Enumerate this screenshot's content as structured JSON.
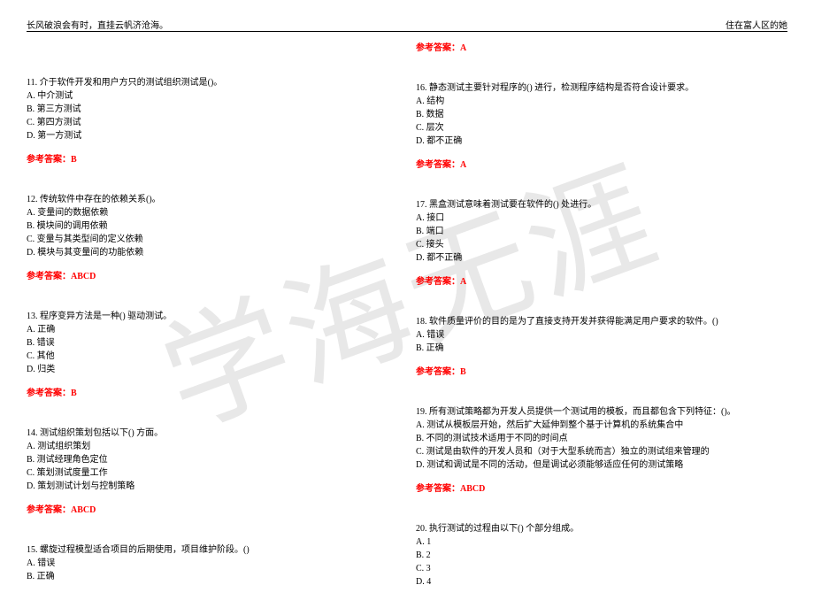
{
  "header": {
    "left": "长风破浪会有时，直挂云帆济沧海。",
    "right": "住在富人区的她"
  },
  "watermark": "学海无涯",
  "answer_prefix": "参考答案：",
  "left_column": [
    {
      "question": "11. 介于软件开发和用户方只的测试组织测试是()。",
      "options": [
        "A. 中介测试",
        "B. 第三方测试",
        "C. 第四方测试",
        "D. 第一方测试"
      ],
      "answer": "B"
    },
    {
      "question": "12. 传统软件中存在的依赖关系()。",
      "options": [
        "A. 变量间的数据依赖",
        "B. 模块间的调用依赖",
        "C. 变量与其类型间的定义依赖",
        "D. 模块与其变量间的功能依赖"
      ],
      "answer": "ABCD"
    },
    {
      "question": "13. 程序变异方法是一种() 驱动测试。",
      "options": [
        "A. 正确",
        "B. 错误",
        "C. 其他",
        "D. 归类"
      ],
      "answer": "B"
    },
    {
      "question": "14. 测试组织策划包括以下() 方面。",
      "options": [
        "A. 测试组织策划",
        "B. 测试经理角色定位",
        "C. 策划测试度量工作",
        "D. 策划测试计划与控制策略"
      ],
      "answer": "ABCD"
    },
    {
      "question": "15. 螺旋过程模型适合项目的后期使用，项目维护阶段。()",
      "options": [
        "A. 错误",
        "B. 正确"
      ],
      "answer": null
    }
  ],
  "right_column": [
    {
      "question": null,
      "options": [],
      "answer": "A"
    },
    {
      "question": "16. 静态测试主要针对程序的() 进行，检测程序结构是否符合设计要求。",
      "options": [
        "A. 结构",
        "B. 数据",
        "C. 层次",
        "D. 都不正确"
      ],
      "answer": "A"
    },
    {
      "question": "17. 黑盒测试意味着测试要在软件的() 处进行。",
      "options": [
        "A. 接口",
        "B. 端口",
        "C. 接头",
        "D. 都不正确"
      ],
      "answer": "A"
    },
    {
      "question": "18. 软件质量评价的目的是为了直接支持开发并获得能满足用户要求的软件。()",
      "options": [
        "A. 错误",
        "B. 正确"
      ],
      "answer": "B"
    },
    {
      "question": "19. 所有测试策略都为开发人员提供一个测试用的模板，而且都包含下列特征：()。",
      "options": [
        "A. 测试从模板层开始，然后扩大延伸到整个基于计算机的系统集合中",
        "B. 不同的测试技术适用于不同的时间点",
        "C. 测试是由软件的开发人员和（对于大型系统而言）独立的测试组来管理的",
        "D. 测试和调试是不同的活动，但是调试必须能够适应任何的测试策略"
      ],
      "answer": "ABCD"
    },
    {
      "question": "20. 执行测试的过程由以下() 个部分组成。",
      "options": [
        "A. 1",
        "B. 2",
        "C. 3",
        "D. 4"
      ],
      "answer": null
    }
  ],
  "colors": {
    "text": "#000000",
    "answer": "#ff0000",
    "watermark": "#e8e8e8",
    "background": "#ffffff"
  }
}
